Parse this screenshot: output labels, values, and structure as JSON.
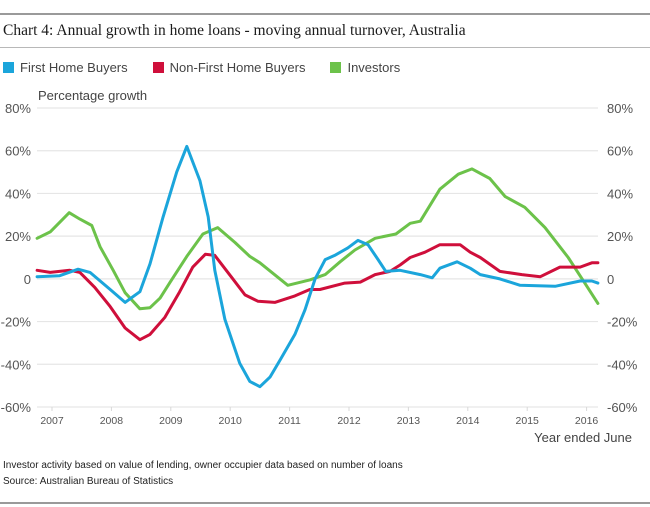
{
  "title": "Chart 4: Annual growth in home loans - moving annual turnover, Australia",
  "legend": [
    {
      "label": "First Home Buyers",
      "color": "#1ba5db"
    },
    {
      "label": "Non-First Home Buyers",
      "color": "#cf0f3b"
    },
    {
      "label": "Investors",
      "color": "#6cc24a"
    }
  ],
  "footnotes": {
    "note": "Investor activity based on value of lending, owner occupier data based on number of loans",
    "source": "Source: Australian Bureau of Statistics"
  },
  "chart_data": {
    "type": "line",
    "title": "Chart 4: Annual growth in home loans - moving annual turnover, Australia",
    "ylabel": "Percentage growth",
    "xlabel": "Year ended June",
    "ylim": [
      -60,
      80
    ],
    "xlim": [
      2006.75,
      2016.2
    ],
    "grid": true,
    "legend_position": "top-left",
    "y_ticks": [
      80,
      60,
      40,
      20,
      0,
      -20,
      -40,
      -60
    ],
    "y_tick_labels": [
      "80%",
      "60%",
      "40%",
      "20%",
      "0",
      "-20%",
      "-40%",
      "-60%"
    ],
    "x_ticks": [
      2007,
      2008,
      2009,
      2010,
      2011,
      2012,
      2013,
      2014,
      2015,
      2016
    ],
    "x_tick_labels": [
      "2007",
      "2008",
      "2009",
      "2010",
      "2011",
      "2012",
      "2013",
      "2014",
      "2015",
      "2016"
    ],
    "series": [
      {
        "name": "First Home Buyers",
        "color": "#1ba5db",
        "points": [
          [
            2006.75,
            1
          ],
          [
            2007.13,
            1.5
          ],
          [
            2007.44,
            4.5
          ],
          [
            2007.64,
            3
          ],
          [
            2007.98,
            -5
          ],
          [
            2008.23,
            -11
          ],
          [
            2008.48,
            -6
          ],
          [
            2008.65,
            7
          ],
          [
            2008.87,
            29
          ],
          [
            2009.1,
            50
          ],
          [
            2009.27,
            62
          ],
          [
            2009.49,
            46
          ],
          [
            2009.63,
            29
          ],
          [
            2009.74,
            4
          ],
          [
            2009.91,
            -19
          ],
          [
            2010.16,
            -39.5
          ],
          [
            2010.33,
            -48
          ],
          [
            2010.5,
            -50.5
          ],
          [
            2010.67,
            -46
          ],
          [
            2010.84,
            -38
          ],
          [
            2011.09,
            -26
          ],
          [
            2011.26,
            -14.5
          ],
          [
            2011.43,
            0
          ],
          [
            2011.6,
            9
          ],
          [
            2011.76,
            11
          ],
          [
            2011.98,
            14.5
          ],
          [
            2012.15,
            18
          ],
          [
            2012.32,
            16
          ],
          [
            2012.49,
            9
          ],
          [
            2012.62,
            3.5
          ],
          [
            2012.86,
            4
          ],
          [
            2013.2,
            2
          ],
          [
            2013.4,
            0.5
          ],
          [
            2013.53,
            5
          ],
          [
            2013.82,
            8
          ],
          [
            2014.04,
            5
          ],
          [
            2014.21,
            2
          ],
          [
            2014.54,
            0
          ],
          [
            2014.88,
            -3
          ],
          [
            2015.47,
            -3.5
          ],
          [
            2015.89,
            -1
          ],
          [
            2016.09,
            -1
          ],
          [
            2016.19,
            -2
          ]
        ]
      },
      {
        "name": "Non-First Home Buyers",
        "color": "#cf0f3b",
        "points": [
          [
            2006.75,
            4
          ],
          [
            2006.97,
            3
          ],
          [
            2007.3,
            4
          ],
          [
            2007.47,
            3
          ],
          [
            2007.72,
            -4
          ],
          [
            2007.98,
            -13
          ],
          [
            2008.23,
            -23
          ],
          [
            2008.48,
            -28.5
          ],
          [
            2008.65,
            -26
          ],
          [
            2008.9,
            -18
          ],
          [
            2009.15,
            -6
          ],
          [
            2009.37,
            5.5
          ],
          [
            2009.58,
            11.5
          ],
          [
            2009.74,
            11
          ],
          [
            2010.03,
            0.5
          ],
          [
            2010.25,
            -7.5
          ],
          [
            2010.47,
            -10.5
          ],
          [
            2010.75,
            -11
          ],
          [
            2011.09,
            -8
          ],
          [
            2011.34,
            -5
          ],
          [
            2011.51,
            -5
          ],
          [
            2011.93,
            -2
          ],
          [
            2012.19,
            -1.5
          ],
          [
            2012.44,
            2
          ],
          [
            2012.69,
            3.5
          ],
          [
            2012.86,
            6.5
          ],
          [
            2013.03,
            10
          ],
          [
            2013.28,
            12.5
          ],
          [
            2013.53,
            16
          ],
          [
            2013.87,
            16
          ],
          [
            2014.04,
            12.5
          ],
          [
            2014.21,
            10
          ],
          [
            2014.54,
            3.5
          ],
          [
            2014.91,
            2
          ],
          [
            2015.22,
            1
          ],
          [
            2015.55,
            5.5
          ],
          [
            2015.89,
            5.5
          ],
          [
            2016.09,
            7.5
          ],
          [
            2016.19,
            7.5
          ]
        ]
      },
      {
        "name": "Investors",
        "color": "#6cc24a",
        "points": [
          [
            2006.75,
            19
          ],
          [
            2006.97,
            22
          ],
          [
            2007.29,
            31
          ],
          [
            2007.47,
            28
          ],
          [
            2007.67,
            25
          ],
          [
            2007.81,
            15
          ],
          [
            2008.03,
            4
          ],
          [
            2008.23,
            -6.5
          ],
          [
            2008.48,
            -14
          ],
          [
            2008.65,
            -13.5
          ],
          [
            2008.82,
            -9
          ],
          [
            2008.99,
            -1.5
          ],
          [
            2009.27,
            10.5
          ],
          [
            2009.54,
            21
          ],
          [
            2009.79,
            24
          ],
          [
            2010.08,
            17
          ],
          [
            2010.33,
            10.5
          ],
          [
            2010.5,
            7.5
          ],
          [
            2010.97,
            -3
          ],
          [
            2011.34,
            -0.5
          ],
          [
            2011.6,
            2
          ],
          [
            2011.85,
            8
          ],
          [
            2012.1,
            13.5
          ],
          [
            2012.44,
            19
          ],
          [
            2012.79,
            21
          ],
          [
            2013.03,
            26
          ],
          [
            2013.2,
            27
          ],
          [
            2013.53,
            42
          ],
          [
            2013.84,
            49
          ],
          [
            2014.07,
            51.5
          ],
          [
            2014.37,
            47
          ],
          [
            2014.63,
            38.5
          ],
          [
            2014.96,
            33.5
          ],
          [
            2015.3,
            24
          ],
          [
            2015.69,
            10
          ],
          [
            2015.97,
            -2
          ],
          [
            2016.19,
            -11.5
          ]
        ]
      }
    ]
  }
}
